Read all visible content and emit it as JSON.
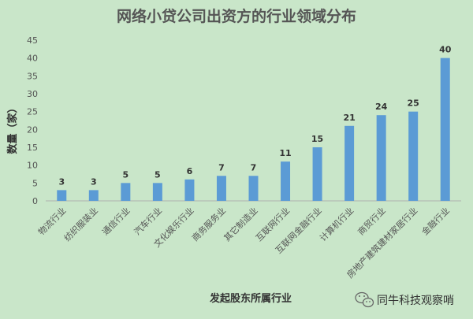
{
  "chart_data": {
    "type": "bar",
    "title": "网络小贷公司出资方的行业领域分布",
    "xlabel": "发起股东所属行业",
    "ylabel": "数量（家）",
    "ylim": [
      0,
      45
    ],
    "yticks": [
      0,
      5,
      10,
      15,
      20,
      25,
      30,
      35,
      40,
      45
    ],
    "grid": false,
    "categories": [
      "物流行业",
      "纺织服装业",
      "通信行业",
      "汽车行业",
      "文化娱乐行业",
      "商务服务业",
      "其它制造业",
      "互联网行业",
      "互联网金融行业",
      "计算机行业",
      "商贸行业",
      "房地产建筑建材家居行业",
      "金融行业"
    ],
    "values": [
      3,
      3,
      5,
      5,
      6,
      7,
      7,
      11,
      15,
      21,
      24,
      25,
      40
    ],
    "bar_color": "#5b9bd5"
  },
  "watermark": {
    "text": "同牛科技观察哨",
    "icon": "wechat-icon"
  }
}
